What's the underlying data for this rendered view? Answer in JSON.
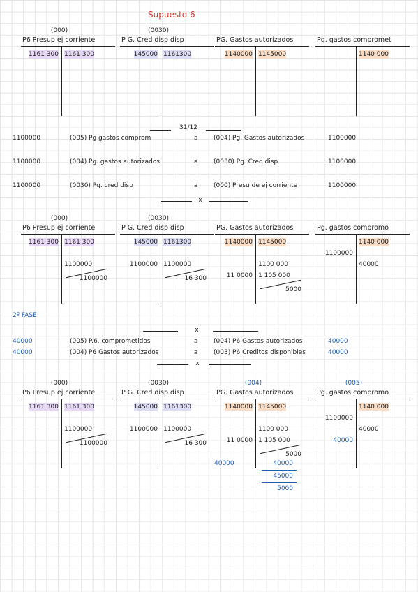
{
  "title": "Supuesto 6",
  "sections": [
    {
      "accounts": [
        {
          "code": "(000)",
          "name": "P6 Presup ej corriente",
          "debit": [
            "1161 300"
          ],
          "credit": [
            "1161 300"
          ],
          "balance": null
        },
        {
          "code": "(0030)",
          "name": "P G. Cred disp disp",
          "debit": [
            "145000"
          ],
          "credit": [
            "1161300"
          ],
          "balance": null
        },
        {
          "code": null,
          "name": "PG. Gastos autorizados",
          "debit": [
            "1140000"
          ],
          "credit": [
            "1145000"
          ],
          "balance": null
        },
        {
          "code": null,
          "name": "Pg. gastos compromet",
          "debit": [],
          "credit": [
            "1140 000"
          ],
          "balance": null
        }
      ]
    },
    {
      "accounts": [
        {
          "code": "(000)",
          "name": "P6 Presup ej corriente",
          "debit": [
            "1161 300"
          ],
          "credit": [
            "1161 300",
            null,
            "1100000"
          ],
          "balance": "1100000"
        },
        {
          "code": "(0030)",
          "name": "P G. Cred disp disp",
          "debit": [
            "145000",
            null,
            "1100000"
          ],
          "credit": [
            "1161300",
            null,
            "1100000"
          ],
          "balance": "16 300"
        },
        {
          "code": null,
          "name": "PG. Gastos autorizados",
          "debit": [
            "1140000",
            null,
            null,
            "11 0000"
          ],
          "credit": [
            "1145000",
            null,
            "1100 000",
            "1 105 000"
          ],
          "balance": "5000"
        },
        {
          "code": null,
          "name": "Pg. gastos compromo",
          "debit": [
            null,
            "1100000"
          ],
          "credit": [
            "1140 000",
            null,
            "40000"
          ],
          "balance": null
        }
      ]
    },
    {
      "accounts": [
        {
          "code": "(000)",
          "name": "P6 Presup ej corriente",
          "debit": [
            "1161 300"
          ],
          "credit": [
            "1161 300",
            null,
            "1100000"
          ],
          "balance": "1100000"
        },
        {
          "code": "(0030)",
          "name": "P G. Cred disp disp",
          "debit": [
            "145000",
            null,
            "1100000"
          ],
          "credit": [
            "1161300",
            null,
            "1100000"
          ],
          "balance": "16 300"
        },
        {
          "code": "(004)",
          "name": "PG. Gastos autorizados",
          "debit": [
            "1140000",
            null,
            null,
            "11 0000"
          ],
          "credit": [
            "1145000",
            null,
            "1100 000",
            "1 105 000"
          ],
          "balance": "5000"
        },
        {
          "code": "(005)",
          "name": "Pg. gastos compromo",
          "debit": [
            null,
            "1100000",
            null,
            "40000"
          ],
          "credit": [
            "1140 000",
            null,
            "40000"
          ],
          "balance": null
        }
      ]
    }
  ],
  "journal1": {
    "date": "31/12",
    "end": "x",
    "rows": [
      [
        "1100000",
        "(005) Pg gastos comprom",
        "a",
        "(004) Pg. Gastos autorizados",
        "1100000"
      ],
      [
        "1100000",
        "(004) Pg. gastos autorizados",
        "a",
        "(0030) Pg. Cred disp",
        "1100000"
      ],
      [
        "1100000",
        "(0030) Pg. cred disp",
        "a",
        "(000) Presu de ej corriente",
        "1100000"
      ]
    ]
  },
  "phase": "2º FASE",
  "journal2": {
    "start": "x",
    "end": "x",
    "rows": [
      [
        "40000",
        "(005) P.6. comprometidos",
        "a",
        "(004) P6 Gastos autorizados",
        "40000"
      ],
      [
        "40000",
        "(004) P6 Gastos autorizados",
        "a",
        "(003) P6 Creditos disponibles",
        "40000"
      ]
    ]
  },
  "calc": {
    "left": "40000",
    "lines": [
      "40000",
      "45000",
      "5000"
    ]
  }
}
